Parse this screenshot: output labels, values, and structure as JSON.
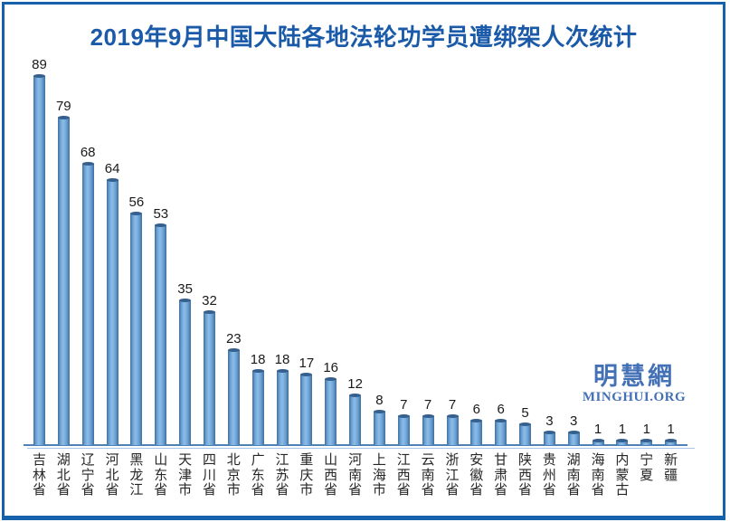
{
  "title": {
    "text": "2019年9月中国大陆各地法轮功学员遭绑架人次统计",
    "color": "#1A5AA8"
  },
  "logo": {
    "cjk": "明慧網",
    "latin": "MINGHUI.ORG",
    "color": "#4470B5"
  },
  "frame": {
    "border_color": "#1661AB",
    "background": "#FFFFFF"
  },
  "axis": {
    "line_color": "#4E81B8",
    "shadow_color": "#A9C6E8"
  },
  "bar_style": {
    "edge": "#3E6F9E",
    "mid": "#6DA3D6",
    "light": "#8DBDE8",
    "cap": "#35608E",
    "value_label_color": "#1A1A1A",
    "category_label_color": "#262626"
  },
  "chart_data": {
    "type": "bar",
    "title": "2019年9月中国大陆各地法轮功学员遭绑架人次统计",
    "categories": [
      "吉林省",
      "湖北省",
      "辽宁省",
      "河北省",
      "黑龙江",
      "山东省",
      "天津市",
      "四川省",
      "北京市",
      "广东省",
      "江苏省",
      "重庆市",
      "山西省",
      "河南省",
      "上海市",
      "江西省",
      "云南省",
      "浙江省",
      "安徽省",
      "甘肃省",
      "陕西省",
      "贵州省",
      "湖南省",
      "海南省",
      "内蒙古",
      "宁夏",
      "新疆"
    ],
    "values": [
      89,
      79,
      68,
      64,
      56,
      53,
      35,
      32,
      23,
      18,
      18,
      17,
      16,
      12,
      8,
      7,
      7,
      7,
      6,
      6,
      5,
      3,
      3,
      1,
      1,
      1,
      1
    ],
    "xlabel": "",
    "ylabel": "",
    "ylim": [
      0,
      95
    ],
    "grid": false,
    "legend": false,
    "y_axis_visible": false,
    "data_labels": "above-bars",
    "x_tick_orientation": "vertical-stacked"
  }
}
